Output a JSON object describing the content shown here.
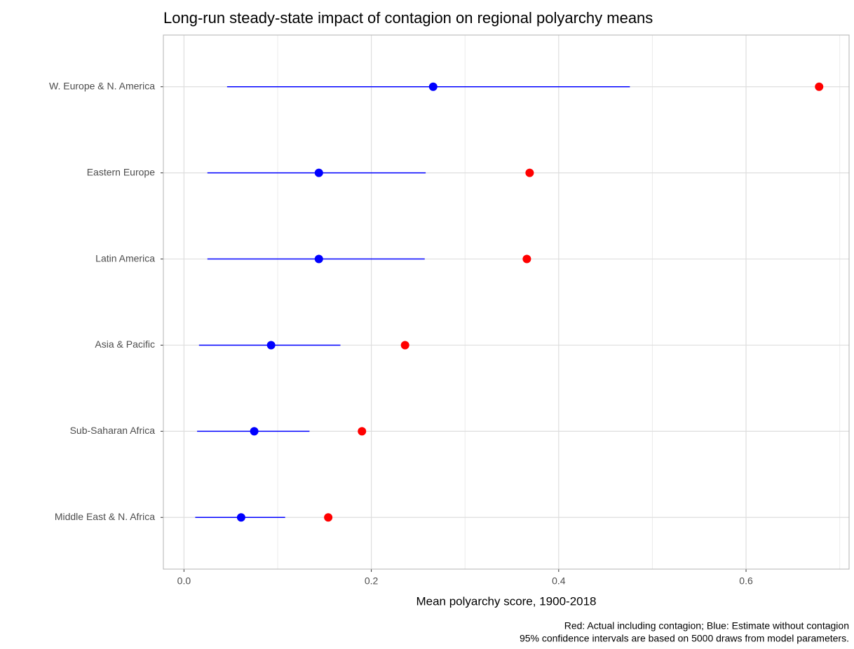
{
  "chart_data": {
    "type": "dot-interval",
    "title": "Long-run steady-state impact of contagion on regional polyarchy means",
    "x_label": "Mean polyarchy score, 1900-2018",
    "caption": [
      "Red: Actual including contagion; Blue: Estimate without contagion",
      "95% confidence intervals are based on 5000 draws from model parameters."
    ],
    "categories": [
      "W. Europe & N. America",
      "Eastern Europe",
      "Latin America",
      "Asia & Pacific",
      "Sub-Saharan Africa",
      "Middle East & N. Africa"
    ],
    "series": [
      {
        "color": "#0000ff",
        "values": [
          0.266,
          0.144,
          0.144,
          0.093,
          0.075,
          0.061
        ],
        "lower": [
          0.046,
          0.025,
          0.025,
          0.016,
          0.014,
          0.012
        ],
        "upper": [
          0.476,
          0.258,
          0.257,
          0.167,
          0.134,
          0.108
        ]
      },
      {
        "color": "#ff0000",
        "values": [
          0.678,
          0.369,
          0.366,
          0.236,
          0.19,
          0.154
        ]
      }
    ],
    "xlim": [
      -0.022,
      0.71
    ],
    "xticks": [
      {
        "value": 0,
        "label": "0.0"
      },
      0.2,
      0.4,
      0.6
    ],
    "xminor": [
      0.1,
      0.3,
      0.5,
      0.7
    ],
    "grid": true
  }
}
